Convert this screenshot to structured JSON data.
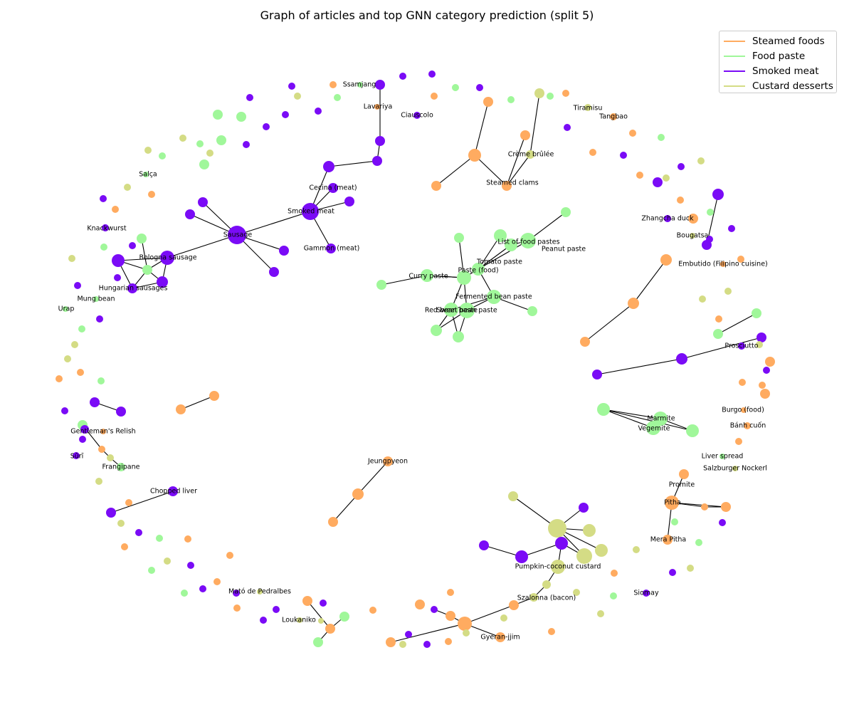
{
  "title": "Graph of articles and top GNN category prediction (split 5)",
  "legend": [
    {
      "name": "Steamed foods",
      "color": "#ffab60"
    },
    {
      "name": "Food paste",
      "color": "#a0f79a"
    },
    {
      "name": "Smoked meat",
      "color": "#7a0bf6"
    },
    {
      "name": "Custard desserts",
      "color": "#d4dc85"
    }
  ],
  "node_labels": [
    "Ssamjang",
    "Lavariya",
    "Ciauscolo",
    "Tiramisu",
    "Tangbao",
    "Crème brûlée",
    "Steamed clams",
    "Salça",
    "Cecina (meat)",
    "Smoked meat",
    "Knackwurst",
    "Sausage",
    "Gammon (meat)",
    "Bologna sausage",
    "Hungarian sausages",
    "Mung bean",
    "Urap",
    "Zhangcha duck",
    "Bougatsa",
    "List of food pastes",
    "Peanut paste",
    "Tomato paste",
    "Paste (food)",
    "Curry paste",
    "Embutido (Filipino cuisine)",
    "Fermented bean paste",
    "Red bean paste",
    "Sweet bean paste",
    "Prosciutto",
    "Burgo (food)",
    "Marmite",
    "Vegemite",
    "Bánh cuốn",
    "Gentleman's Relish",
    "Sūrī",
    "Frangipane",
    "Jeungpyeon",
    "Liver spread",
    "Salzburger Nockerl",
    "Promite",
    "Chopped liver",
    "Pitha",
    "Mera Pitha",
    "Pumpkin-coconut custard",
    "Szalonna (bacon)",
    "Siomay",
    "Mató de Pedralbes",
    "Loukaniko",
    "Gyeran-jjim"
  ]
}
